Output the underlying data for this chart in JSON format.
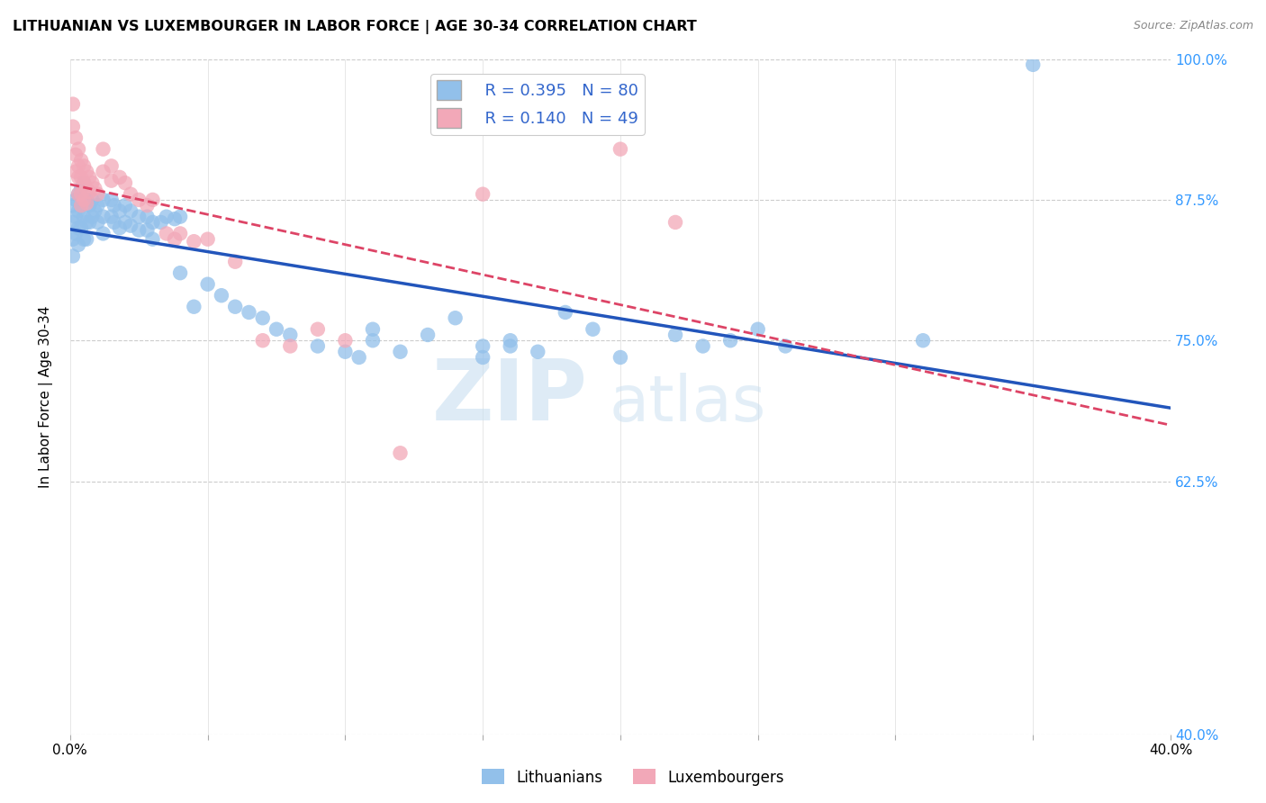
{
  "title": "LITHUANIAN VS LUXEMBOURGER IN LABOR FORCE | AGE 30-34 CORRELATION CHART",
  "source": "Source: ZipAtlas.com",
  "ylabel": "In Labor Force | Age 30-34",
  "x_min": 0.0,
  "x_max": 0.4,
  "y_min": 0.4,
  "y_max": 1.0,
  "x_ticks": [
    0.0,
    0.05,
    0.1,
    0.15,
    0.2,
    0.25,
    0.3,
    0.35,
    0.4
  ],
  "y_ticks": [
    0.4,
    0.625,
    0.75,
    0.875,
    1.0
  ],
  "y_tick_labels": [
    "40.0%",
    "62.5%",
    "75.0%",
    "87.5%",
    "100.0%"
  ],
  "R_blue": 0.395,
  "N_blue": 80,
  "R_pink": 0.14,
  "N_pink": 49,
  "blue_color": "#92C0EA",
  "pink_color": "#F2A8B8",
  "trend_blue": "#2255BB",
  "trend_pink": "#DD4466",
  "legend_blue_label": "Lithuanians",
  "legend_pink_label": "Luxembourgers",
  "watermark_zip": "ZIP",
  "watermark_atlas": "atlas",
  "blue_points": [
    [
      0.001,
      0.87
    ],
    [
      0.001,
      0.855
    ],
    [
      0.001,
      0.84
    ],
    [
      0.001,
      0.825
    ],
    [
      0.002,
      0.875
    ],
    [
      0.002,
      0.86
    ],
    [
      0.002,
      0.845
    ],
    [
      0.003,
      0.88
    ],
    [
      0.003,
      0.865
    ],
    [
      0.003,
      0.85
    ],
    [
      0.003,
      0.835
    ],
    [
      0.004,
      0.885
    ],
    [
      0.004,
      0.87
    ],
    [
      0.004,
      0.85
    ],
    [
      0.005,
      0.89
    ],
    [
      0.005,
      0.875
    ],
    [
      0.005,
      0.86
    ],
    [
      0.005,
      0.84
    ],
    [
      0.006,
      0.875
    ],
    [
      0.006,
      0.855
    ],
    [
      0.006,
      0.84
    ],
    [
      0.007,
      0.87
    ],
    [
      0.007,
      0.855
    ],
    [
      0.008,
      0.875
    ],
    [
      0.008,
      0.86
    ],
    [
      0.009,
      0.865
    ],
    [
      0.01,
      0.87
    ],
    [
      0.01,
      0.855
    ],
    [
      0.012,
      0.875
    ],
    [
      0.012,
      0.86
    ],
    [
      0.012,
      0.845
    ],
    [
      0.015,
      0.875
    ],
    [
      0.015,
      0.86
    ],
    [
      0.016,
      0.87
    ],
    [
      0.016,
      0.855
    ],
    [
      0.018,
      0.865
    ],
    [
      0.018,
      0.85
    ],
    [
      0.02,
      0.87
    ],
    [
      0.02,
      0.855
    ],
    [
      0.022,
      0.865
    ],
    [
      0.022,
      0.852
    ],
    [
      0.025,
      0.86
    ],
    [
      0.025,
      0.848
    ],
    [
      0.028,
      0.86
    ],
    [
      0.028,
      0.848
    ],
    [
      0.03,
      0.855
    ],
    [
      0.03,
      0.84
    ],
    [
      0.033,
      0.855
    ],
    [
      0.035,
      0.86
    ],
    [
      0.038,
      0.858
    ],
    [
      0.04,
      0.86
    ],
    [
      0.04,
      0.81
    ],
    [
      0.045,
      0.78
    ],
    [
      0.05,
      0.8
    ],
    [
      0.055,
      0.79
    ],
    [
      0.06,
      0.78
    ],
    [
      0.065,
      0.775
    ],
    [
      0.07,
      0.77
    ],
    [
      0.075,
      0.76
    ],
    [
      0.08,
      0.755
    ],
    [
      0.09,
      0.745
    ],
    [
      0.1,
      0.74
    ],
    [
      0.105,
      0.735
    ],
    [
      0.11,
      0.76
    ],
    [
      0.11,
      0.75
    ],
    [
      0.12,
      0.74
    ],
    [
      0.13,
      0.755
    ],
    [
      0.14,
      0.77
    ],
    [
      0.15,
      0.745
    ],
    [
      0.15,
      0.735
    ],
    [
      0.16,
      0.75
    ],
    [
      0.16,
      0.745
    ],
    [
      0.17,
      0.74
    ],
    [
      0.18,
      0.775
    ],
    [
      0.19,
      0.76
    ],
    [
      0.2,
      0.735
    ],
    [
      0.22,
      0.755
    ],
    [
      0.23,
      0.745
    ],
    [
      0.24,
      0.75
    ],
    [
      0.25,
      0.76
    ],
    [
      0.26,
      0.745
    ],
    [
      0.31,
      0.75
    ],
    [
      0.35,
      0.995
    ]
  ],
  "pink_points": [
    [
      0.001,
      0.96
    ],
    [
      0.001,
      0.94
    ],
    [
      0.002,
      0.93
    ],
    [
      0.002,
      0.915
    ],
    [
      0.002,
      0.9
    ],
    [
      0.003,
      0.92
    ],
    [
      0.003,
      0.905
    ],
    [
      0.003,
      0.895
    ],
    [
      0.003,
      0.88
    ],
    [
      0.004,
      0.91
    ],
    [
      0.004,
      0.895
    ],
    [
      0.004,
      0.88
    ],
    [
      0.004,
      0.87
    ],
    [
      0.005,
      0.905
    ],
    [
      0.005,
      0.89
    ],
    [
      0.005,
      0.875
    ],
    [
      0.006,
      0.9
    ],
    [
      0.006,
      0.885
    ],
    [
      0.006,
      0.872
    ],
    [
      0.007,
      0.895
    ],
    [
      0.007,
      0.882
    ],
    [
      0.008,
      0.89
    ],
    [
      0.009,
      0.885
    ],
    [
      0.01,
      0.88
    ],
    [
      0.012,
      0.92
    ],
    [
      0.012,
      0.9
    ],
    [
      0.015,
      0.905
    ],
    [
      0.015,
      0.892
    ],
    [
      0.018,
      0.895
    ],
    [
      0.02,
      0.89
    ],
    [
      0.022,
      0.88
    ],
    [
      0.025,
      0.875
    ],
    [
      0.028,
      0.87
    ],
    [
      0.03,
      0.875
    ],
    [
      0.035,
      0.845
    ],
    [
      0.038,
      0.84
    ],
    [
      0.04,
      0.845
    ],
    [
      0.045,
      0.838
    ],
    [
      0.05,
      0.84
    ],
    [
      0.06,
      0.82
    ],
    [
      0.07,
      0.75
    ],
    [
      0.08,
      0.745
    ],
    [
      0.09,
      0.76
    ],
    [
      0.1,
      0.75
    ],
    [
      0.12,
      0.65
    ],
    [
      0.15,
      0.88
    ],
    [
      0.2,
      0.92
    ],
    [
      0.22,
      0.855
    ]
  ]
}
